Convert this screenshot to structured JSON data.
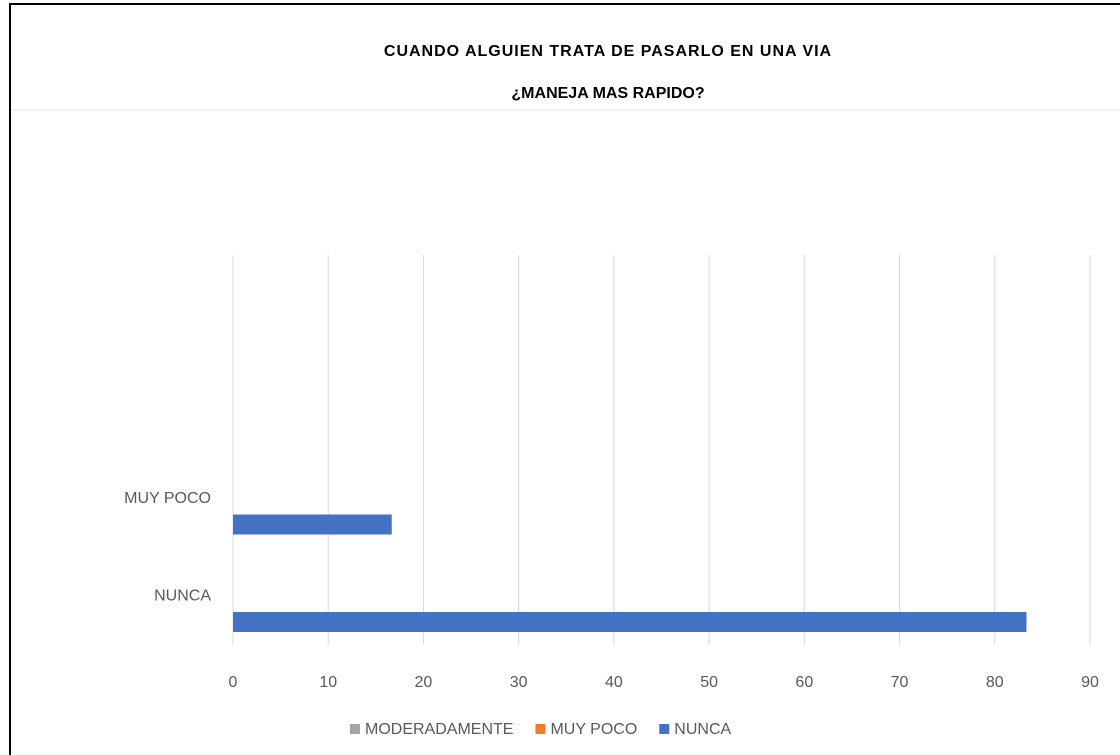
{
  "chart_data": {
    "type": "bar",
    "orientation": "horizontal",
    "title": "CUANDO ALGUIEN TRATA DE PASARLO EN UNA VIA",
    "subtitle": "¿MANEJA MAS RAPIDO?",
    "categories": [
      "NUNCA",
      "MUY POCO",
      null,
      null
    ],
    "series": [
      {
        "name": "MODERADAMENTE",
        "color": "#a5a5a5",
        "values": [
          null,
          null,
          null,
          null
        ]
      },
      {
        "name": "MUY POCO",
        "color": "#ed7d31",
        "values": [
          null,
          null,
          null,
          null
        ]
      },
      {
        "name": "NUNCA",
        "color": "#4472c4",
        "values": [
          83.33,
          16.67,
          null,
          null
        ]
      }
    ],
    "xlim": [
      0,
      90
    ],
    "xticks": [
      0,
      10,
      20,
      30,
      40,
      50,
      60,
      70,
      80,
      90
    ],
    "grid": true,
    "legend": "bottom"
  }
}
